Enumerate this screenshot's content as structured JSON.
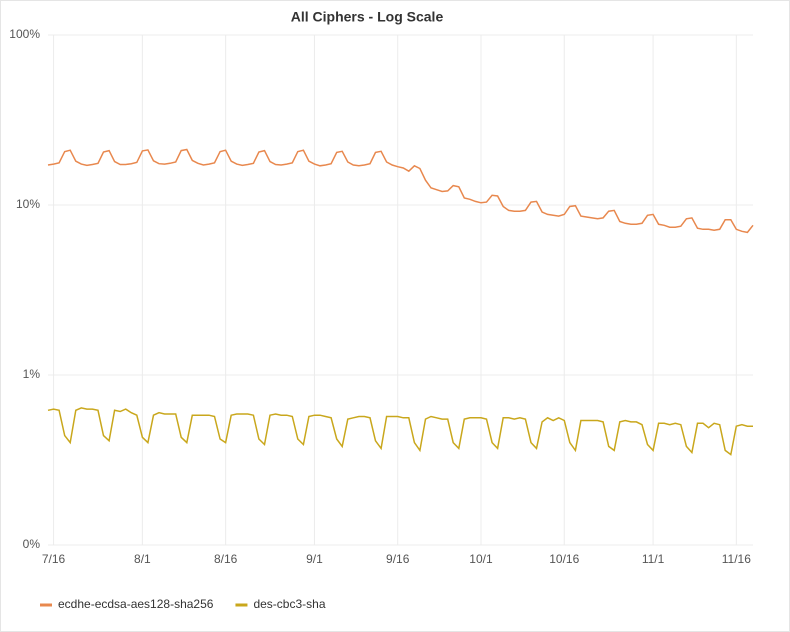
{
  "chart_data": {
    "type": "line",
    "title": "All Ciphers - Log Scale",
    "categories": [
      null,
      "7/16",
      null,
      null,
      null,
      null,
      null,
      null,
      null,
      null,
      null,
      null,
      null,
      null,
      null,
      null,
      null,
      "8/1",
      null,
      null,
      null,
      null,
      null,
      null,
      null,
      null,
      null,
      null,
      null,
      null,
      null,
      null,
      "8/16",
      null,
      null,
      null,
      null,
      null,
      null,
      null,
      null,
      null,
      null,
      null,
      null,
      null,
      null,
      null,
      "9/1",
      null,
      null,
      null,
      null,
      null,
      null,
      null,
      null,
      null,
      null,
      null,
      null,
      null,
      null,
      "9/16",
      null,
      null,
      null,
      null,
      null,
      null,
      null,
      null,
      null,
      null,
      null,
      null,
      null,
      null,
      "10/1",
      null,
      null,
      null,
      null,
      null,
      null,
      null,
      null,
      null,
      null,
      null,
      null,
      null,
      null,
      "10/16",
      null,
      null,
      null,
      null,
      null,
      null,
      null,
      null,
      null,
      null,
      null,
      null,
      null,
      null,
      null,
      "11/1",
      null,
      null,
      null,
      null,
      null,
      null,
      null,
      null,
      null,
      null,
      null,
      null,
      null,
      null,
      "11/16",
      null,
      null,
      null
    ],
    "series": [
      {
        "name": "ecdhe-ecdsa-aes128-sha256",
        "color": "#e8884e",
        "values": [
          17.2,
          17.4,
          17.7,
          20.6,
          21.0,
          18.1,
          17.4,
          17.1,
          17.3,
          17.6,
          20.5,
          20.9,
          18.0,
          17.3,
          17.3,
          17.5,
          17.8,
          20.8,
          21.1,
          18.2,
          17.5,
          17.4,
          17.6,
          17.9,
          20.9,
          21.2,
          18.3,
          17.6,
          17.2,
          17.4,
          17.7,
          20.6,
          21.0,
          18.1,
          17.4,
          17.1,
          17.3,
          17.6,
          20.5,
          20.9,
          18.0,
          17.3,
          17.2,
          17.4,
          17.7,
          20.6,
          21.0,
          18.1,
          17.4,
          17.0,
          17.2,
          17.5,
          20.4,
          20.7,
          17.9,
          17.2,
          17.0,
          17.2,
          17.5,
          20.4,
          20.7,
          17.9,
          17.2,
          16.8,
          16.5,
          15.8,
          17.0,
          16.4,
          14.0,
          12.6,
          12.3,
          12.0,
          12.1,
          13.0,
          12.8,
          11.0,
          10.8,
          10.5,
          10.3,
          10.4,
          11.4,
          11.3,
          9.8,
          9.3,
          9.2,
          9.2,
          9.3,
          10.4,
          10.5,
          9.1,
          8.8,
          8.7,
          8.6,
          8.8,
          9.8,
          9.9,
          8.6,
          8.5,
          8.4,
          8.3,
          8.4,
          9.2,
          9.3,
          8.0,
          7.8,
          7.7,
          7.7,
          7.8,
          8.7,
          8.8,
          7.7,
          7.6,
          7.4,
          7.4,
          7.5,
          8.3,
          8.4,
          7.3,
          7.2,
          7.2,
          7.1,
          7.2,
          8.2,
          8.2,
          7.2,
          7.0,
          6.9,
          7.6
        ]
      },
      {
        "name": "des-cbc3-sha",
        "color": "#c9a71c",
        "values": [
          0.62,
          0.63,
          0.62,
          0.44,
          0.4,
          0.62,
          0.64,
          0.63,
          0.63,
          0.62,
          0.44,
          0.41,
          0.62,
          0.61,
          0.63,
          0.6,
          0.58,
          0.43,
          0.4,
          0.58,
          0.6,
          0.59,
          0.59,
          0.59,
          0.43,
          0.4,
          0.58,
          0.58,
          0.58,
          0.58,
          0.57,
          0.42,
          0.4,
          0.58,
          0.59,
          0.59,
          0.59,
          0.58,
          0.42,
          0.39,
          0.58,
          0.59,
          0.58,
          0.58,
          0.57,
          0.42,
          0.39,
          0.57,
          0.58,
          0.58,
          0.57,
          0.56,
          0.42,
          0.38,
          0.55,
          0.56,
          0.57,
          0.57,
          0.56,
          0.41,
          0.37,
          0.57,
          0.57,
          0.57,
          0.56,
          0.56,
          0.4,
          0.36,
          0.55,
          0.57,
          0.56,
          0.55,
          0.55,
          0.4,
          0.37,
          0.55,
          0.56,
          0.56,
          0.56,
          0.55,
          0.4,
          0.37,
          0.56,
          0.56,
          0.55,
          0.56,
          0.55,
          0.4,
          0.37,
          0.53,
          0.56,
          0.54,
          0.56,
          0.54,
          0.4,
          0.36,
          0.54,
          0.54,
          0.54,
          0.54,
          0.53,
          0.38,
          0.36,
          0.53,
          0.54,
          0.53,
          0.53,
          0.51,
          0.39,
          0.36,
          0.52,
          0.52,
          0.51,
          0.52,
          0.51,
          0.38,
          0.35,
          0.52,
          0.52,
          0.49,
          0.52,
          0.51,
          0.36,
          0.34,
          0.5,
          0.51,
          0.5,
          0.5
        ]
      }
    ],
    "ylim": [
      0.1,
      100
    ],
    "log_scale": true,
    "yticks": [
      {
        "value": 100,
        "label": "100%"
      },
      {
        "value": 10,
        "label": "10%"
      },
      {
        "value": 1,
        "label": "1%"
      },
      {
        "value": 0.1,
        "label": "0%"
      }
    ],
    "grid": true,
    "legend": "bottom-left"
  }
}
